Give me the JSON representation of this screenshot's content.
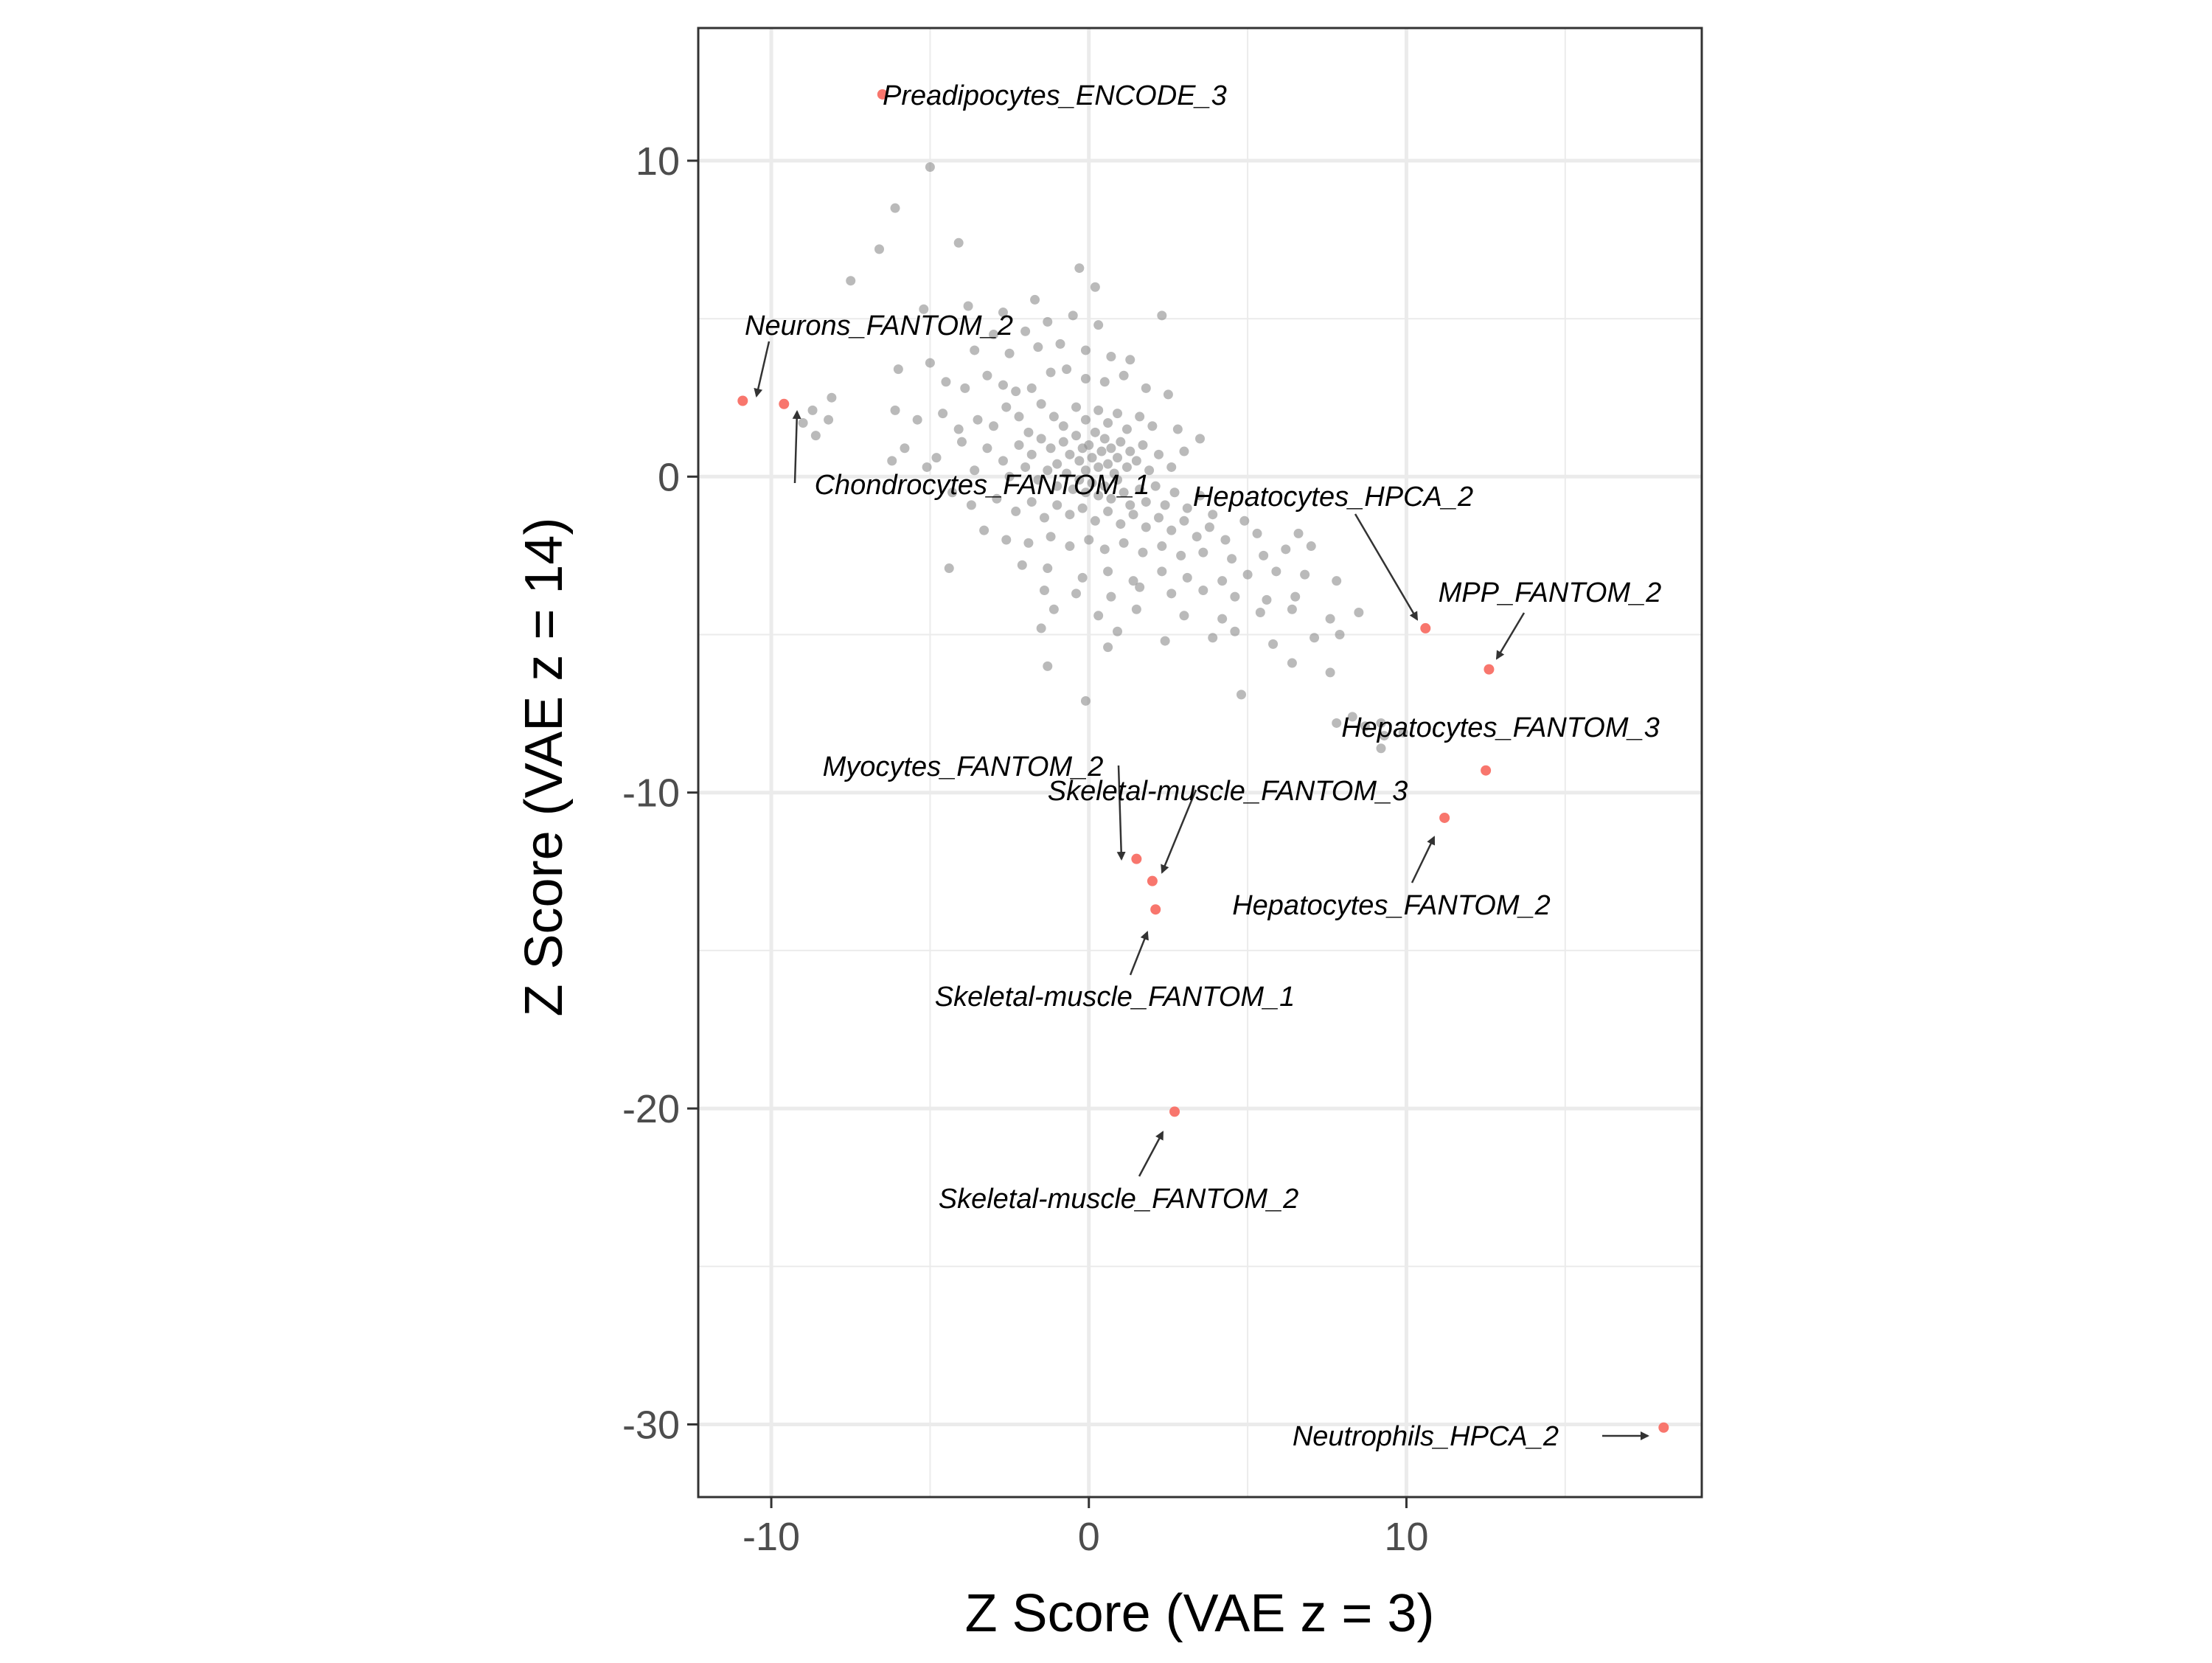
{
  "chart_data": {
    "type": "scatter",
    "title": "",
    "xlabel": "Z Score (VAE z = 3)",
    "ylabel": "Z Score (VAE z = 14)",
    "xlim": [
      -12.3,
      19.3
    ],
    "ylim": [
      -32.3,
      14.2
    ],
    "x_ticks": [
      -10,
      0,
      10
    ],
    "y_ticks": [
      10,
      0,
      -10,
      -20,
      -30
    ],
    "grid": true,
    "legend": "none",
    "colors": {
      "background_points": "#8c8c8c",
      "highlight_points": "#f8766d",
      "grid": "#ebebeb",
      "panel_border": "#333333",
      "arrow": "#333333"
    },
    "highlighted_points": [
      {
        "label": "Preadipocytes_ENCODE_3",
        "x": -6.5,
        "y": 12.1
      },
      {
        "label": "Neurons_FANTOM_2",
        "x": -10.9,
        "y": 2.4
      },
      {
        "label": "Chondrocytes_FANTOM_1",
        "x": -9.6,
        "y": 2.3
      },
      {
        "label": "Hepatocytes_HPCA_2",
        "x": 10.6,
        "y": -4.8
      },
      {
        "label": "MPP_FANTOM_2",
        "x": 12.6,
        "y": -6.1
      },
      {
        "label": "Hepatocytes_FANTOM_3",
        "x": 12.5,
        "y": -9.3
      },
      {
        "label": "Hepatocytes_FANTOM_2",
        "x": 11.2,
        "y": -10.8
      },
      {
        "label": "Myocytes_FANTOM_2",
        "x": 1.5,
        "y": -12.1
      },
      {
        "label": "Skeletal-muscle_FANTOM_3",
        "x": 2.0,
        "y": -12.8
      },
      {
        "label": "Skeletal-muscle_FANTOM_1",
        "x": 2.1,
        "y": -13.7
      },
      {
        "label": "Skeletal-muscle_FANTOM_2",
        "x": 2.7,
        "y": -20.1
      },
      {
        "label": "Neutrophils_HPCA_2",
        "x": 18.1,
        "y": -30.1
      }
    ],
    "background_points": [
      [
        -5.0,
        9.8
      ],
      [
        -6.1,
        8.5
      ],
      [
        -6.6,
        7.2
      ],
      [
        -4.1,
        7.4
      ],
      [
        -7.5,
        6.2
      ],
      [
        -5.2,
        5.3
      ],
      [
        -0.3,
        6.6
      ],
      [
        0.2,
        6.0
      ],
      [
        -1.7,
        5.6
      ],
      [
        -2.7,
        5.2
      ],
      [
        -3.8,
        5.4
      ],
      [
        -1.3,
        4.9
      ],
      [
        -0.5,
        5.1
      ],
      [
        0.3,
        4.8
      ],
      [
        2.3,
        5.1
      ],
      [
        -2.0,
        4.6
      ],
      [
        -3.6,
        4.0
      ],
      [
        -3.0,
        4.5
      ],
      [
        -2.5,
        3.9
      ],
      [
        -1.6,
        4.1
      ],
      [
        -0.9,
        4.2
      ],
      [
        -0.1,
        4.0
      ],
      [
        0.7,
        3.8
      ],
      [
        1.3,
        3.7
      ],
      [
        1.1,
        3.2
      ],
      [
        -5.0,
        3.6
      ],
      [
        -6.0,
        3.4
      ],
      [
        -4.5,
        3.0
      ],
      [
        -3.9,
        2.8
      ],
      [
        -3.2,
        3.2
      ],
      [
        -2.7,
        2.9
      ],
      [
        -2.3,
        2.7
      ],
      [
        -1.8,
        2.8
      ],
      [
        -1.2,
        3.3
      ],
      [
        -0.7,
        3.4
      ],
      [
        -0.1,
        3.1
      ],
      [
        0.5,
        3.0
      ],
      [
        1.8,
        2.8
      ],
      [
        2.5,
        2.6
      ],
      [
        -8.1,
        2.5
      ],
      [
        -8.2,
        1.8
      ],
      [
        -8.7,
        2.1
      ],
      [
        -8.6,
        1.3
      ],
      [
        -9.0,
        1.7
      ],
      [
        -6.1,
        2.1
      ],
      [
        -5.4,
        1.8
      ],
      [
        -4.6,
        2.0
      ],
      [
        -4.1,
        1.5
      ],
      [
        -3.5,
        1.8
      ],
      [
        -3.0,
        1.6
      ],
      [
        -2.6,
        2.2
      ],
      [
        -2.2,
        1.9
      ],
      [
        -1.9,
        1.4
      ],
      [
        -1.5,
        2.3
      ],
      [
        -1.1,
        1.9
      ],
      [
        -0.8,
        1.6
      ],
      [
        -0.4,
        2.2
      ],
      [
        -0.1,
        1.8
      ],
      [
        0.3,
        2.1
      ],
      [
        0.6,
        1.7
      ],
      [
        0.9,
        2.0
      ],
      [
        1.2,
        1.5
      ],
      [
        1.6,
        1.9
      ],
      [
        2.0,
        1.6
      ],
      [
        2.8,
        1.5
      ],
      [
        3.5,
        1.2
      ],
      [
        -5.8,
        0.9
      ],
      [
        -4.8,
        0.6
      ],
      [
        -4.0,
        1.1
      ],
      [
        -3.2,
        0.9
      ],
      [
        -2.7,
        0.5
      ],
      [
        -2.2,
        1.0
      ],
      [
        -1.8,
        0.7
      ],
      [
        -1.5,
        1.2
      ],
      [
        -1.2,
        0.9
      ],
      [
        -1.0,
        0.4
      ],
      [
        -0.8,
        1.1
      ],
      [
        -0.6,
        0.7
      ],
      [
        -0.4,
        1.3
      ],
      [
        -0.3,
        0.5
      ],
      [
        -0.2,
        0.9
      ],
      [
        -0.1,
        0.2
      ],
      [
        0.0,
        1.0
      ],
      [
        0.1,
        0.6
      ],
      [
        0.2,
        1.4
      ],
      [
        0.3,
        0.3
      ],
      [
        0.4,
        0.8
      ],
      [
        0.5,
        1.2
      ],
      [
        0.6,
        0.4
      ],
      [
        0.7,
        0.9
      ],
      [
        0.8,
        0.1
      ],
      [
        0.9,
        0.6
      ],
      [
        1.0,
        1.1
      ],
      [
        1.2,
        0.3
      ],
      [
        1.3,
        0.8
      ],
      [
        1.5,
        0.5
      ],
      [
        1.7,
        1.0
      ],
      [
        1.9,
        0.2
      ],
      [
        2.2,
        0.7
      ],
      [
        2.6,
        0.3
      ],
      [
        3.0,
        0.8
      ],
      [
        -6.2,
        0.5
      ],
      [
        -5.1,
        0.3
      ],
      [
        -3.6,
        0.2
      ],
      [
        -2.5,
        0.0
      ],
      [
        -2.0,
        0.3
      ],
      [
        -1.6,
        -0.1
      ],
      [
        -1.3,
        0.2
      ],
      [
        -1.0,
        -0.3
      ],
      [
        -0.7,
        0.1
      ],
      [
        -0.5,
        -0.4
      ],
      [
        -0.3,
        -0.1
      ],
      [
        -0.1,
        -0.5
      ],
      [
        0.1,
        -0.2
      ],
      [
        0.3,
        -0.6
      ],
      [
        0.5,
        -0.3
      ],
      [
        0.7,
        -0.7
      ],
      [
        0.9,
        -0.1
      ],
      [
        1.1,
        -0.5
      ],
      [
        1.3,
        -0.9
      ],
      [
        1.6,
        -0.4
      ],
      [
        1.8,
        -0.8
      ],
      [
        2.1,
        -0.3
      ],
      [
        2.4,
        -0.9
      ],
      [
        2.7,
        -0.5
      ],
      [
        3.1,
        -1.0
      ],
      [
        3.5,
        -0.6
      ],
      [
        3.9,
        -1.2
      ],
      [
        -4.3,
        -0.5
      ],
      [
        -3.7,
        -0.9
      ],
      [
        -2.9,
        -0.7
      ],
      [
        -2.3,
        -1.1
      ],
      [
        -1.8,
        -0.8
      ],
      [
        -1.4,
        -1.3
      ],
      [
        -1.0,
        -0.9
      ],
      [
        -0.6,
        -1.2
      ],
      [
        -0.2,
        -1.0
      ],
      [
        0.2,
        -1.4
      ],
      [
        0.6,
        -1.1
      ],
      [
        1.0,
        -1.5
      ],
      [
        1.4,
        -1.2
      ],
      [
        1.8,
        -1.6
      ],
      [
        2.2,
        -1.3
      ],
      [
        2.6,
        -1.7
      ],
      [
        3.0,
        -1.4
      ],
      [
        3.4,
        -1.9
      ],
      [
        3.8,
        -1.6
      ],
      [
        4.3,
        -2.0
      ],
      [
        4.9,
        -1.4
      ],
      [
        5.3,
        -1.8
      ],
      [
        -3.3,
        -1.7
      ],
      [
        -2.6,
        -2.0
      ],
      [
        -1.9,
        -2.1
      ],
      [
        -1.2,
        -1.9
      ],
      [
        -0.6,
        -2.2
      ],
      [
        0.0,
        -2.0
      ],
      [
        0.5,
        -2.3
      ],
      [
        1.1,
        -2.1
      ],
      [
        1.7,
        -2.4
      ],
      [
        2.3,
        -2.2
      ],
      [
        2.9,
        -2.5
      ],
      [
        3.6,
        -2.4
      ],
      [
        4.5,
        -2.6
      ],
      [
        5.5,
        -2.5
      ],
      [
        6.2,
        -2.3
      ],
      [
        6.6,
        -1.8
      ],
      [
        7.0,
        -2.2
      ],
      [
        -4.4,
        -2.9
      ],
      [
        -2.1,
        -2.8
      ],
      [
        -1.3,
        -2.9
      ],
      [
        -0.2,
        -3.2
      ],
      [
        0.6,
        -3.0
      ],
      [
        1.4,
        -3.3
      ],
      [
        2.3,
        -3.0
      ],
      [
        3.1,
        -3.2
      ],
      [
        4.2,
        -3.3
      ],
      [
        5.0,
        -3.1
      ],
      [
        5.9,
        -3.0
      ],
      [
        6.8,
        -3.1
      ],
      [
        7.8,
        -3.3
      ],
      [
        -1.4,
        -3.6
      ],
      [
        -0.4,
        -3.7
      ],
      [
        0.7,
        -3.8
      ],
      [
        1.6,
        -3.5
      ],
      [
        2.6,
        -3.7
      ],
      [
        3.6,
        -3.6
      ],
      [
        4.6,
        -3.8
      ],
      [
        5.6,
        -3.9
      ],
      [
        6.5,
        -3.8
      ],
      [
        -1.1,
        -4.2
      ],
      [
        0.3,
        -4.4
      ],
      [
        1.5,
        -4.2
      ],
      [
        3.0,
        -4.4
      ],
      [
        4.2,
        -4.5
      ],
      [
        5.4,
        -4.3
      ],
      [
        6.4,
        -4.2
      ],
      [
        7.6,
        -4.5
      ],
      [
        8.5,
        -4.3
      ],
      [
        -1.5,
        -4.8
      ],
      [
        0.9,
        -4.9
      ],
      [
        2.4,
        -5.2
      ],
      [
        3.9,
        -5.1
      ],
      [
        4.6,
        -4.9
      ],
      [
        5.8,
        -5.3
      ],
      [
        7.1,
        -5.1
      ],
      [
        7.9,
        -5.0
      ],
      [
        -1.3,
        -6.0
      ],
      [
        0.6,
        -5.4
      ],
      [
        6.4,
        -5.9
      ],
      [
        7.6,
        -6.2
      ],
      [
        4.8,
        -6.9
      ],
      [
        -0.1,
        -7.1
      ],
      [
        7.8,
        -7.8
      ],
      [
        8.3,
        -7.6
      ],
      [
        9.2,
        -7.8
      ],
      [
        9.3,
        -8.2
      ],
      [
        9.2,
        -8.6
      ],
      [
        8.7,
        -7.9
      ],
      [
        9.9,
        -8.1
      ]
    ]
  }
}
